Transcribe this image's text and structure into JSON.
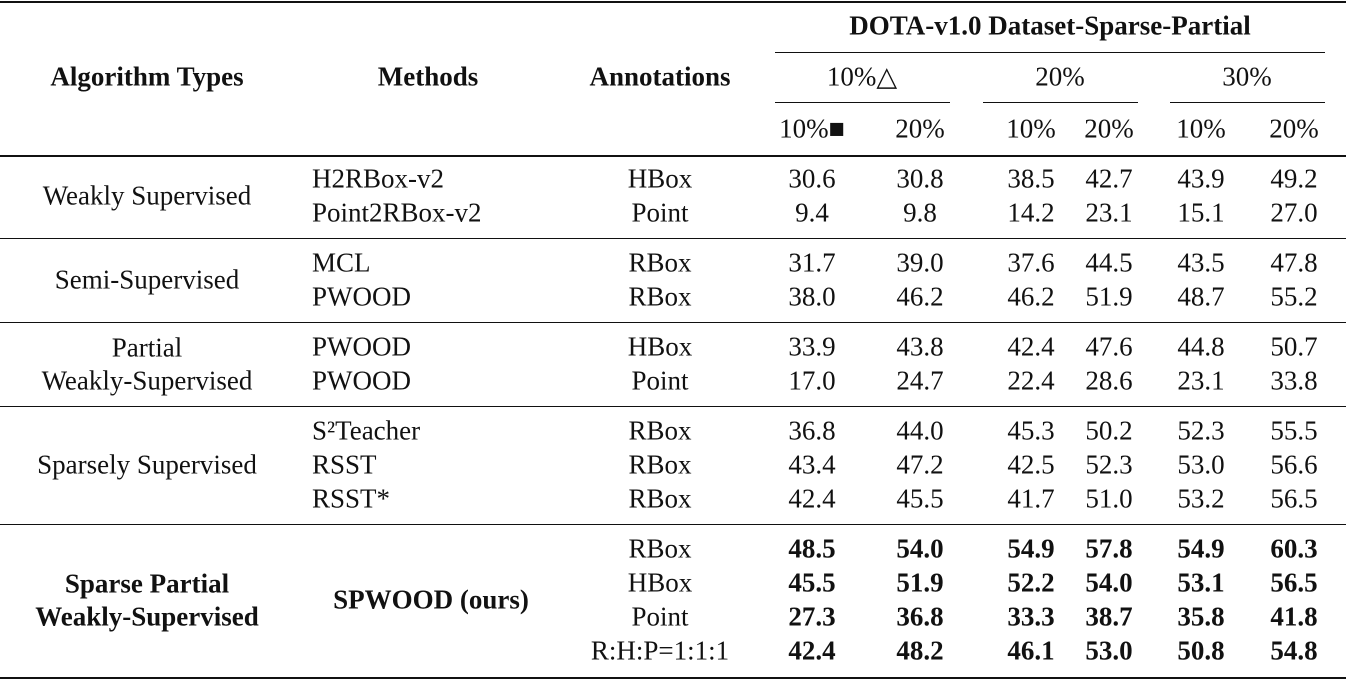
{
  "header": {
    "group_title": "DOTA-v1.0 Dataset-Sparse-Partial",
    "columns": [
      "Algorithm Types",
      "Methods",
      "Annotations"
    ],
    "ratios": [
      "10%△",
      "20%",
      "30%"
    ],
    "subratios": [
      "10%■",
      "20%",
      "10%",
      "20%",
      "10%",
      "20%"
    ]
  },
  "groups": [
    {
      "type": [
        "Weakly Supervised"
      ],
      "bold": false,
      "rows": [
        {
          "method": "H2RBox-v2",
          "annotation": "HBox",
          "values": [
            "30.6",
            "30.8",
            "38.5",
            "42.7",
            "43.9",
            "49.2"
          ]
        },
        {
          "method": "Point2RBox-v2",
          "annotation": "Point",
          "values": [
            "9.4",
            "9.8",
            "14.2",
            "23.1",
            "15.1",
            "27.0"
          ]
        }
      ]
    },
    {
      "type": [
        "Semi-Supervised"
      ],
      "bold": false,
      "rows": [
        {
          "method": "MCL",
          "annotation": "RBox",
          "values": [
            "31.7",
            "39.0",
            "37.6",
            "44.5",
            "43.5",
            "47.8"
          ]
        },
        {
          "method": "PWOOD",
          "annotation": "RBox",
          "values": [
            "38.0",
            "46.2",
            "46.2",
            "51.9",
            "48.7",
            "55.2"
          ]
        }
      ]
    },
    {
      "type": [
        "Partial",
        "Weakly-Supervised"
      ],
      "bold": false,
      "rows": [
        {
          "method": "PWOOD",
          "annotation": "HBox",
          "values": [
            "33.9",
            "43.8",
            "42.4",
            "47.6",
            "44.8",
            "50.7"
          ]
        },
        {
          "method": "PWOOD",
          "annotation": "Point",
          "values": [
            "17.0",
            "24.7",
            "22.4",
            "28.6",
            "23.1",
            "33.8"
          ]
        }
      ]
    },
    {
      "type": [
        "Sparsely Supervised"
      ],
      "bold": false,
      "rows": [
        {
          "method": "S²Teacher",
          "annotation": "RBox",
          "values": [
            "36.8",
            "44.0",
            "45.3",
            "50.2",
            "52.3",
            "55.5"
          ]
        },
        {
          "method": "RSST",
          "annotation": "RBox",
          "values": [
            "43.4",
            "47.2",
            "42.5",
            "52.3",
            "53.0",
            "56.6"
          ]
        },
        {
          "method": "RSST*",
          "annotation": "RBox",
          "values": [
            "42.4",
            "45.5",
            "41.7",
            "51.0",
            "53.2",
            "56.5"
          ]
        }
      ]
    },
    {
      "type": [
        "Sparse Partial",
        "Weakly-Supervised"
      ],
      "bold": true,
      "method": "SPWOOD (ours)",
      "rows": [
        {
          "annotation": "RBox",
          "values": [
            "48.5",
            "54.0",
            "54.9",
            "57.8",
            "54.9",
            "60.3"
          ]
        },
        {
          "annotation": "HBox",
          "values": [
            "45.5",
            "51.9",
            "52.2",
            "54.0",
            "53.1",
            "56.5"
          ]
        },
        {
          "annotation": "Point",
          "values": [
            "27.3",
            "36.8",
            "33.3",
            "38.7",
            "35.8",
            "41.8"
          ]
        },
        {
          "annotation": "R:H:P=1:1:1",
          "values": [
            "42.4",
            "48.2",
            "46.1",
            "53.0",
            "50.8",
            "54.8"
          ]
        }
      ]
    }
  ]
}
